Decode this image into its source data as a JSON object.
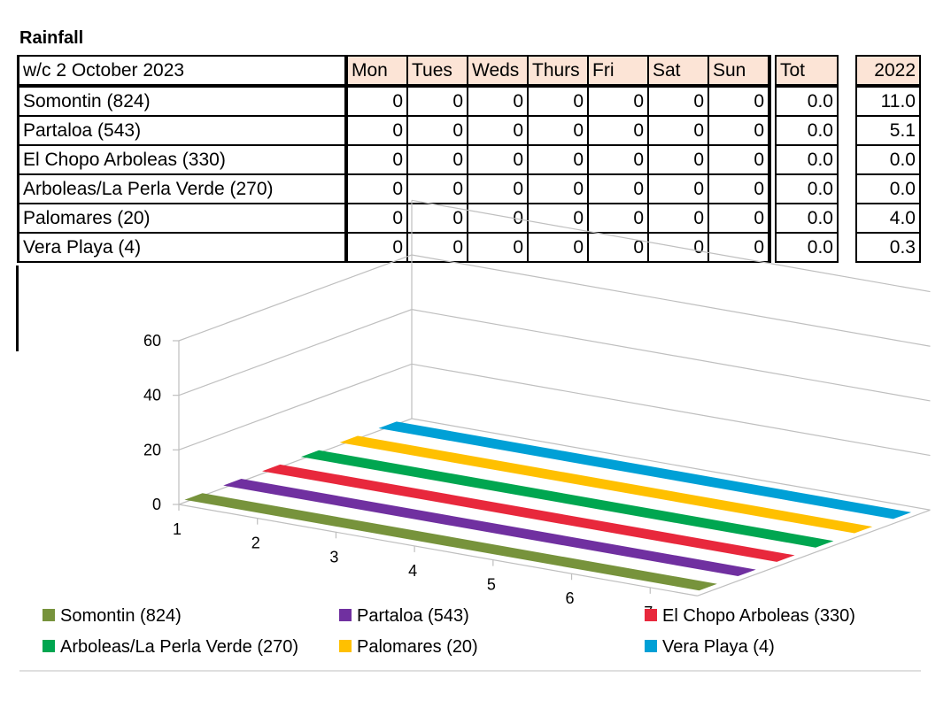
{
  "title": "Rainfall",
  "table": {
    "week_label": "w/c 2 October 2023",
    "days": [
      "Mon",
      "Tues",
      "Weds",
      "Thurs",
      "Fri",
      "Sat",
      "Sun"
    ],
    "total_header": "Tot",
    "prev_year_header": "2022",
    "header_color": "#fce4d6",
    "rows": [
      {
        "name": "Somontin (824)",
        "values": [
          "0",
          "0",
          "0",
          "0",
          "0",
          "0",
          "0"
        ],
        "total": "0.0",
        "prev": "11.0"
      },
      {
        "name": "Partaloa (543)",
        "values": [
          "0",
          "0",
          "0",
          "0",
          "0",
          "0",
          "0"
        ],
        "total": "0.0",
        "prev": "5.1"
      },
      {
        "name": "El Chopo Arboleas (330)",
        "values": [
          "0",
          "0",
          "0",
          "0",
          "0",
          "0",
          "0"
        ],
        "total": "0.0",
        "prev": "0.0"
      },
      {
        "name": "Arboleas/La Perla Verde (270)",
        "values": [
          "0",
          "0",
          "0",
          "0",
          "0",
          "0",
          "0"
        ],
        "total": "0.0",
        "prev": "0.0"
      },
      {
        "name": "Palomares (20)",
        "values": [
          "0",
          "0",
          "0",
          "0",
          "0",
          "0",
          "0"
        ],
        "total": "0.0",
        "prev": "4.0"
      },
      {
        "name": "Vera Playa (4)",
        "values": [
          "0",
          "0",
          "0",
          "0",
          "0",
          "0",
          "0"
        ],
        "total": "0.0",
        "prev": "0.3"
      }
    ]
  },
  "chart_data": {
    "type": "line",
    "style": "3d",
    "x": [
      "1",
      "2",
      "3",
      "4",
      "5",
      "6",
      "7"
    ],
    "ylim": [
      0,
      60
    ],
    "yticks": [
      "0",
      "20",
      "40",
      "60"
    ],
    "grid": true,
    "legend_position": "bottom",
    "series": [
      {
        "name": "Somontin (824)",
        "color": "#77933c",
        "values": [
          0,
          0,
          0,
          0,
          0,
          0,
          0
        ]
      },
      {
        "name": "Partaloa (543)",
        "color": "#7030a0",
        "values": [
          0,
          0,
          0,
          0,
          0,
          0,
          0
        ]
      },
      {
        "name": "El Chopo Arboleas (330)",
        "color": "#e8283c",
        "values": [
          0,
          0,
          0,
          0,
          0,
          0,
          0
        ]
      },
      {
        "name": "Arboleas/La Perla Verde (270)",
        "color": "#00a650",
        "values": [
          0,
          0,
          0,
          0,
          0,
          0,
          0
        ]
      },
      {
        "name": "Palomares (20)",
        "color": "#ffc000",
        "values": [
          0,
          0,
          0,
          0,
          0,
          0,
          0
        ]
      },
      {
        "name": "Vera Playa (4)",
        "color": "#00a0d6",
        "values": [
          0,
          0,
          0,
          0,
          0,
          0,
          0
        ]
      }
    ]
  }
}
